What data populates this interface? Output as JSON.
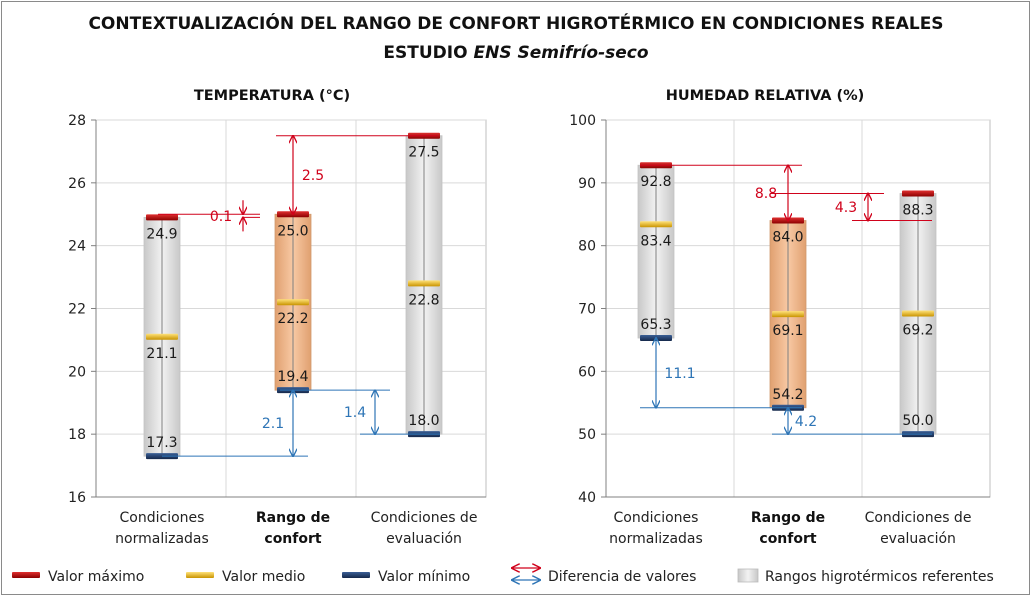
{
  "title_line1": "CONTEXTUALIZACIÓN DEL RANGO DE CONFORT HIGROTÉRMICO EN CONDICIONES REALES",
  "title_line2_prefix": "ESTUDIO ",
  "title_line2_italic": "ENS Semifrío-seco",
  "colors": {
    "max": "#c00000",
    "mean": "#ffc000",
    "min": "#1f3864",
    "diff_red": "#d0021b",
    "diff_blue": "#2e75b6",
    "band_grey": "#d9d9d9",
    "band_orange": "#f4b183"
  },
  "legend": {
    "max": "Valor máximo",
    "mean": "Valor medio",
    "min": "Valor mínimo",
    "diff": "Diferencia de valores",
    "band": "Rangos higrotérmicos referentes"
  },
  "chart_data": [
    {
      "type": "range",
      "title": "TEMPERATURA (°C)",
      "ylim": [
        16,
        28
      ],
      "yticks": [
        16,
        18,
        20,
        22,
        24,
        26,
        28
      ],
      "grid": true,
      "categories": [
        {
          "lines": [
            "Condiciones",
            "normalizadas"
          ],
          "bold": false
        },
        {
          "lines": [
            "Rango de",
            "confort"
          ],
          "bold": true
        },
        {
          "lines": [
            "Condiciones de",
            "evaluación"
          ],
          "bold": false
        }
      ],
      "series": [
        {
          "name": "Valor máximo",
          "values": [
            24.9,
            25.0,
            27.5
          ],
          "labels": [
            "24.9",
            "25.0",
            "27.5"
          ]
        },
        {
          "name": "Valor medio",
          "values": [
            21.1,
            22.2,
            22.8
          ],
          "labels": [
            "21.1",
            "22.2",
            "22.8"
          ]
        },
        {
          "name": "Valor mínimo",
          "values": [
            17.3,
            19.4,
            18.0
          ],
          "labels": [
            "17.3",
            "19.4",
            "18.0"
          ]
        }
      ],
      "differences": [
        {
          "kind": "max",
          "from": 24.9,
          "to": 25.0,
          "label": "0.1"
        },
        {
          "kind": "max",
          "from": 25.0,
          "to": 27.5,
          "label": "2.5"
        },
        {
          "kind": "min",
          "from": 17.3,
          "to": 19.4,
          "label": "2.1"
        },
        {
          "kind": "min",
          "from": 18.0,
          "to": 19.4,
          "label": "1.4"
        }
      ]
    },
    {
      "type": "range",
      "title": "HUMEDAD RELATIVA (%)",
      "ylim": [
        40,
        100
      ],
      "yticks": [
        40,
        50,
        60,
        70,
        80,
        90,
        100
      ],
      "grid": true,
      "categories": [
        {
          "lines": [
            "Condiciones",
            "normalizadas"
          ],
          "bold": false
        },
        {
          "lines": [
            "Rango de",
            "confort"
          ],
          "bold": true
        },
        {
          "lines": [
            "Condiciones de",
            "evaluación"
          ],
          "bold": false
        }
      ],
      "series": [
        {
          "name": "Valor máximo",
          "values": [
            92.8,
            84.0,
            88.3
          ],
          "labels": [
            "92.8",
            "84.0",
            "88.3"
          ]
        },
        {
          "name": "Valor medio",
          "values": [
            83.4,
            69.1,
            69.2
          ],
          "labels": [
            "83.4",
            "69.1",
            "69.2"
          ]
        },
        {
          "name": "Valor mínimo",
          "values": [
            65.3,
            54.2,
            50.0
          ],
          "labels": [
            "65.3",
            "54.2",
            "50.0"
          ]
        }
      ],
      "differences": [
        {
          "kind": "max",
          "from": 84.0,
          "to": 92.8,
          "label": "8.8"
        },
        {
          "kind": "max",
          "from": 84.0,
          "to": 88.3,
          "label": "4.3"
        },
        {
          "kind": "min",
          "from": 54.2,
          "to": 65.3,
          "label": "11.1"
        },
        {
          "kind": "min",
          "from": 50.0,
          "to": 54.2,
          "label": "4.2"
        }
      ]
    }
  ]
}
